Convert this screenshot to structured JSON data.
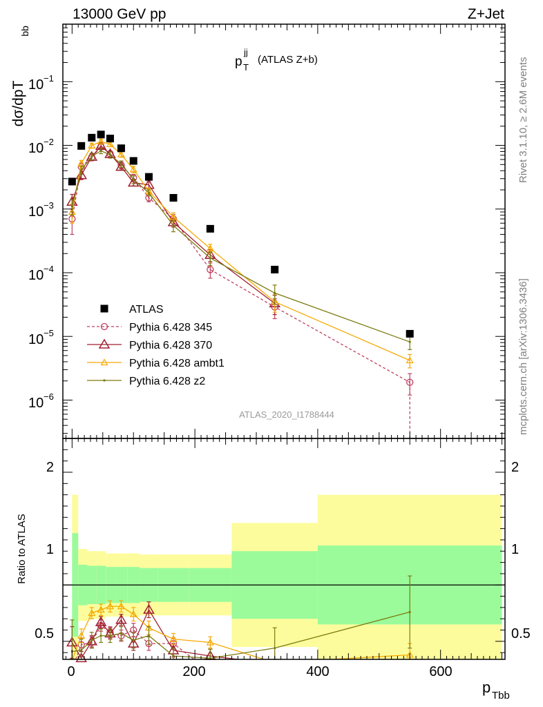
{
  "header": {
    "left": "13000 GeV pp",
    "right": "Z+Jet"
  },
  "main": {
    "title_main": "p",
    "title_sup": "jj",
    "title_sub": "T",
    "title_tail": "(ATLAS Z+b)",
    "ylabel_main": "dσ/dpT",
    "ylabel_sub": "bb",
    "analysis_id": "ATLAS_2020_I1788444",
    "ytick_labels": [
      "10",
      "10",
      "10",
      "10",
      "10",
      "10"
    ],
    "ytick_exponents": [
      "−1",
      "−2",
      "−3",
      "−4",
      "−5",
      "−6"
    ]
  },
  "ratio": {
    "ylabel": "Ratio to ATLAS",
    "yticks": [
      "0.5",
      "1",
      "2"
    ]
  },
  "xaxis": {
    "label_main": "p",
    "label_sub": "Tbb",
    "ticks": [
      "0",
      "200",
      "400",
      "600"
    ]
  },
  "side_text": {
    "rivet": "Rivet 3.1.10, ≥ 2.6M events",
    "mcplots": "mcplots.cern.ch [arXiv:1306.3436]"
  },
  "colors": {
    "atlas": "#000000",
    "p345": "#bf3f5f",
    "p370": "#9f1f2f",
    "ambt1": "#f5a800",
    "z2": "#7a7a10",
    "band_inner": "#9bfb9b",
    "band_outer": "#fcfc9c"
  },
  "chart_data": {
    "type": "scatter",
    "title": "pT jj (ATLAS Z+b)",
    "xlabel": "pTbb",
    "ylabel": "dσ/dpTbb",
    "xlim": [
      -15,
      705
    ],
    "ylim": [
      2.5e-07,
      0.8
    ],
    "log_y": true,
    "ratio_ylim": [
      0.34,
      2.3
    ],
    "x": [
      0,
      15,
      32,
      47,
      62,
      80,
      100,
      125,
      165,
      225,
      330,
      550
    ],
    "xedges": [
      0,
      10,
      25,
      40,
      55,
      70,
      90,
      110,
      140,
      190,
      260,
      400,
      700
    ],
    "series": [
      {
        "name": "ATLAS",
        "values": [
          0.0027,
          0.0098,
          0.0132,
          0.0148,
          0.0128,
          0.009,
          0.0057,
          0.0032,
          0.0015,
          0.00049,
          0.000112,
          1.1e-05
        ],
        "ratio": [
          1,
          1,
          1,
          1,
          1,
          1,
          1,
          1,
          1,
          1,
          1,
          1
        ],
        "band_inner": [
          0.46,
          0.18,
          0.17,
          0.17,
          0.16,
          0.16,
          0.16,
          0.15,
          0.15,
          0.15,
          0.3,
          0.35
        ],
        "band_outer": [
          0.8,
          0.32,
          0.3,
          0.3,
          0.28,
          0.28,
          0.28,
          0.27,
          0.27,
          0.27,
          0.55,
          0.8
        ]
      },
      {
        "name": "Pythia 6.428 345",
        "values": [
          0.0007,
          0.0046,
          0.0065,
          0.0095,
          0.0074,
          0.0049,
          0.0031,
          0.0015,
          0.0007,
          0.000112,
          2.9e-05,
          1.9e-06
        ],
        "errors": [
          0.0003,
          0.0007,
          0.0008,
          0.0009,
          0.0008,
          0.0006,
          0.0004,
          0.0002,
          0.00012,
          3e-05,
          1e-05,
          7e-07
        ],
        "ratio": [
          0.26,
          0.47,
          0.49,
          0.64,
          0.58,
          0.55,
          0.6,
          0.48,
          0.48,
          0.23,
          0.26,
          0.18
        ],
        "ratio_err": [
          0.12,
          0.06,
          0.05,
          0.05,
          0.05,
          0.05,
          0.06,
          0.06,
          0.05,
          0.05,
          0.1,
          0.1
        ]
      },
      {
        "name": "Pythia 6.428 370",
        "values": [
          0.0013,
          0.0034,
          0.0066,
          0.0098,
          0.0073,
          0.0046,
          0.0026,
          0.0024,
          0.00062,
          0.00019,
          3.3e-05,
          null
        ],
        "errors": [
          0.0004,
          0.0005,
          0.0008,
          0.0009,
          0.0008,
          0.0005,
          0.0003,
          0.0003,
          0.0001,
          4e-05,
          1.1e-05,
          null
        ],
        "ratio": [
          0.49,
          0.35,
          0.5,
          0.67,
          0.57,
          0.69,
          0.48,
          0.78,
          0.42,
          0.37,
          0.3,
          null
        ],
        "ratio_err": [
          0.14,
          0.06,
          0.05,
          0.05,
          0.05,
          0.05,
          0.06,
          0.07,
          0.06,
          0.06,
          0.1,
          null
        ]
      },
      {
        "name": "Pythia 6.428 ambt1",
        "values": [
          0.0009,
          0.0052,
          0.0099,
          0.0115,
          0.0104,
          0.0072,
          0.0042,
          0.0019,
          0.00075,
          0.00024,
          3.5e-05,
          4.2e-06
        ],
        "errors": [
          0.0003,
          0.0006,
          0.0009,
          0.001,
          0.0009,
          0.0007,
          0.0005,
          0.0002,
          0.00012,
          4e-05,
          1.1e-05,
          1e-06
        ],
        "ratio": [
          0.33,
          0.55,
          0.75,
          0.78,
          0.81,
          0.81,
          0.74,
          0.62,
          0.52,
          0.49,
          0.31,
          0.38
        ],
        "ratio_err": [
          0.12,
          0.06,
          0.05,
          0.05,
          0.05,
          0.05,
          0.06,
          0.06,
          0.05,
          0.05,
          0.1,
          0.1
        ]
      },
      {
        "name": "Pythia 6.428 z2",
        "values": [
          0.0011,
          0.0041,
          0.0067,
          0.0082,
          0.0071,
          0.0051,
          0.0029,
          0.0018,
          0.00055,
          0.00017,
          4.8e-05,
          8.2e-06
        ],
        "errors": [
          0.0003,
          0.0006,
          0.0008,
          0.0008,
          0.0008,
          0.0006,
          0.0004,
          0.0002,
          0.00011,
          4e-05,
          1.6e-05,
          2e-06
        ],
        "ratio": [
          0.41,
          0.42,
          0.51,
          0.55,
          0.55,
          0.57,
          0.51,
          0.55,
          0.37,
          0.35,
          0.44,
          0.76
        ],
        "ratio_err": [
          0.28,
          0.1,
          0.07,
          0.06,
          0.06,
          0.06,
          0.07,
          0.08,
          0.07,
          0.08,
          0.18,
          0.32
        ]
      }
    ]
  }
}
